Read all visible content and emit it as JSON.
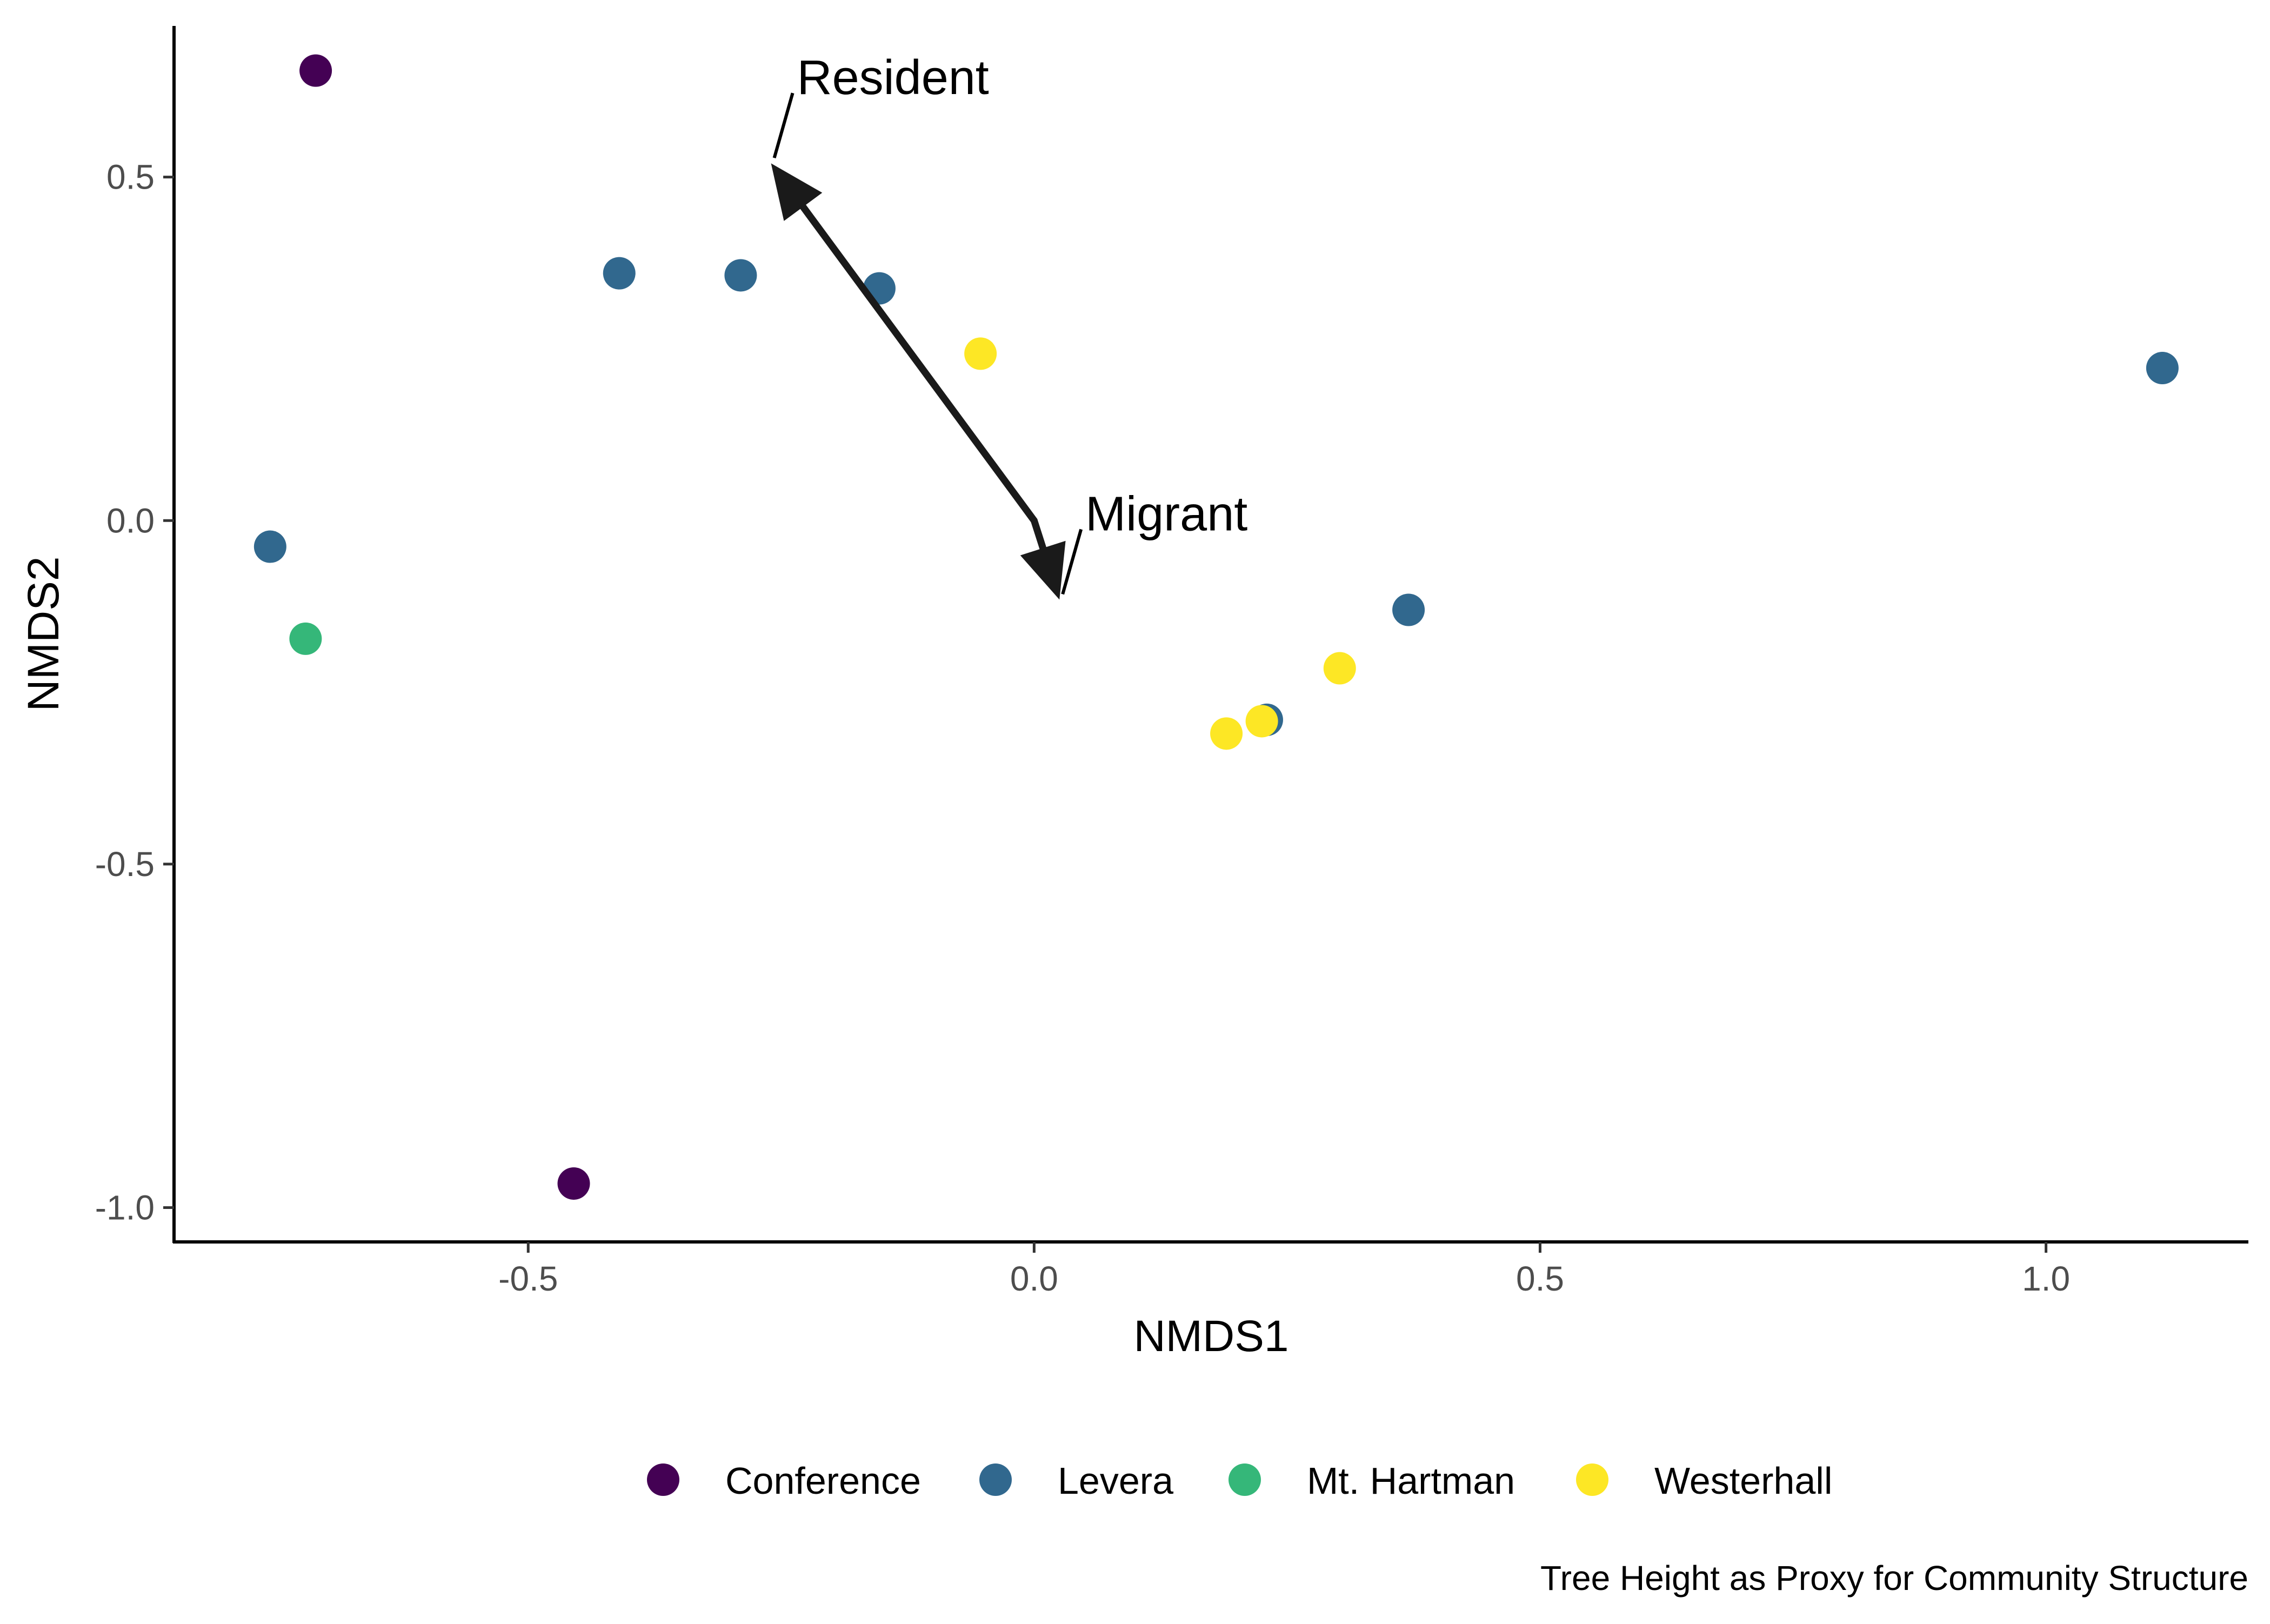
{
  "chart_data": {
    "type": "scatter",
    "xlabel": "NMDS1",
    "ylabel": "NMDS2",
    "xlim": [
      -0.85,
      1.2
    ],
    "ylim": [
      -1.05,
      0.72
    ],
    "x_ticks": [
      {
        "value": -0.5,
        "label": "-0.5"
      },
      {
        "value": 0.0,
        "label": "0.0"
      },
      {
        "value": 0.5,
        "label": "0.5"
      },
      {
        "value": 1.0,
        "label": "1.0"
      }
    ],
    "y_ticks": [
      {
        "value": 0.5,
        "label": "0.5"
      },
      {
        "value": 0.0,
        "label": "0.0"
      },
      {
        "value": -0.5,
        "label": "-0.5"
      },
      {
        "value": -1.0,
        "label": "-1.0"
      }
    ],
    "grid": false,
    "legend_position": "bottom",
    "caption": "Tree Height as Proxy for Community Structure",
    "series": [
      {
        "name": "Conference",
        "color": "#440154",
        "points": [
          {
            "x": -0.71,
            "y": 0.655
          },
          {
            "x": -0.455,
            "y": -0.965
          }
        ]
      },
      {
        "name": "Levera",
        "color": "#31688E",
        "points": [
          {
            "x": -0.41,
            "y": 0.36
          },
          {
            "x": -0.29,
            "y": 0.357
          },
          {
            "x": -0.153,
            "y": 0.338
          },
          {
            "x": 1.115,
            "y": 0.222
          },
          {
            "x": -0.755,
            "y": -0.038
          },
          {
            "x": 0.37,
            "y": -0.13
          },
          {
            "x": 0.23,
            "y": -0.29
          }
        ]
      },
      {
        "name": "Mt. Hartman",
        "color": "#35B779",
        "points": [
          {
            "x": -0.72,
            "y": -0.172
          }
        ]
      },
      {
        "name": "Westerhall",
        "color": "#FDE725",
        "points": [
          {
            "x": -0.053,
            "y": 0.243
          },
          {
            "x": 0.302,
            "y": -0.215
          },
          {
            "x": 0.225,
            "y": -0.292
          },
          {
            "x": 0.19,
            "y": -0.31
          }
        ]
      }
    ],
    "arrows": [
      {
        "label": "Resident",
        "x": -0.26,
        "y": 0.52,
        "color": "#1a1a1a"
      },
      {
        "label": "Migrant",
        "x": 0.025,
        "y": -0.115,
        "color": "#1a1a1a"
      }
    ]
  }
}
